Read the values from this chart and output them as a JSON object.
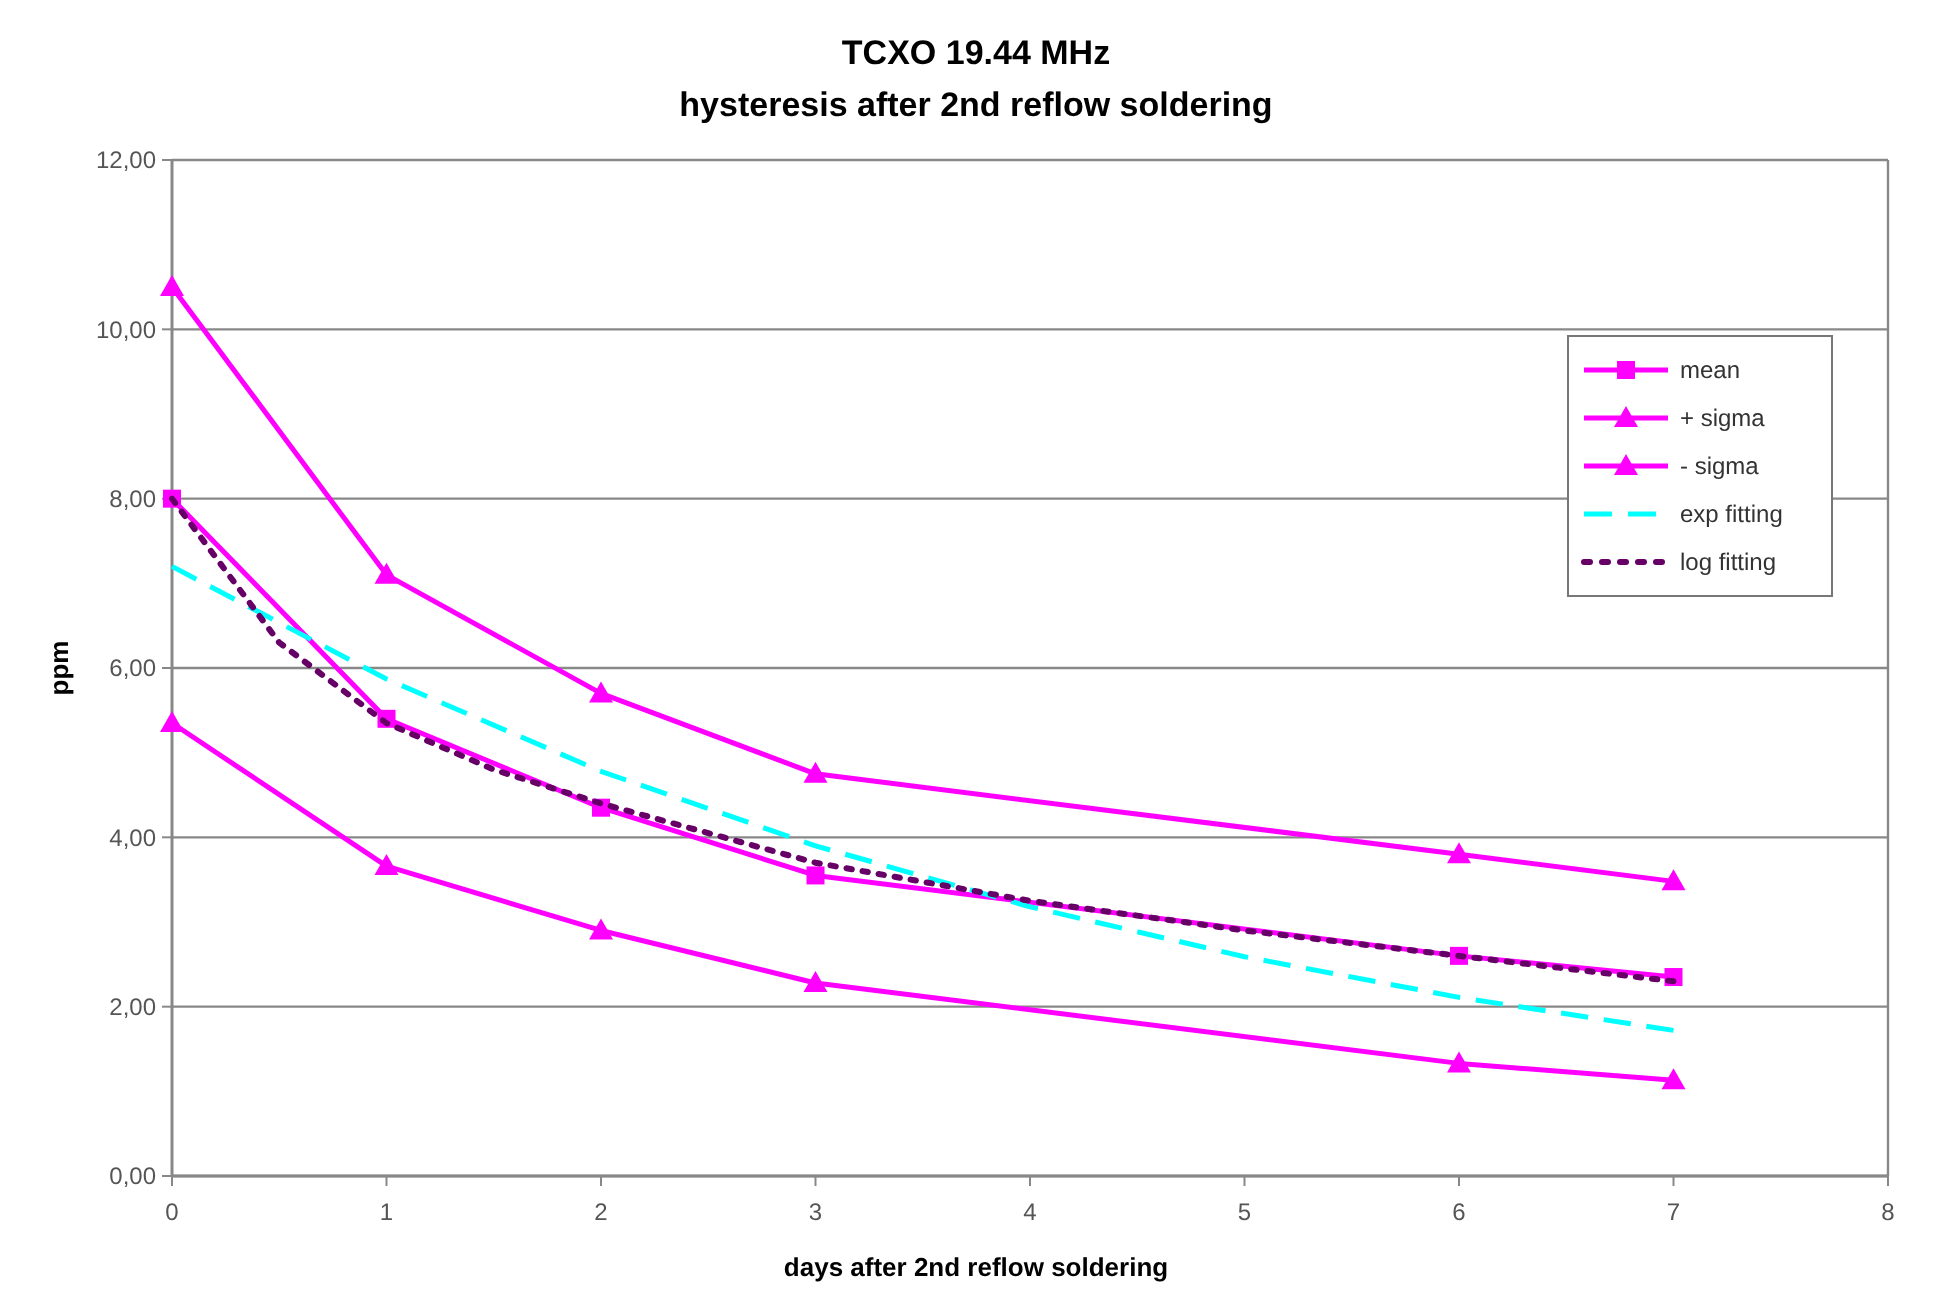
{
  "chart_data": {
    "type": "line",
    "title": "TCXO 19.44 MHz",
    "subtitle": "hysteresis after 2nd reflow soldering",
    "xlabel": "days after 2nd reflow soldering",
    "ylabel": "ppm",
    "xlim": [
      0,
      8
    ],
    "xticks": [
      0,
      1,
      2,
      3,
      4,
      5,
      6,
      7,
      8
    ],
    "ylim": [
      0,
      12
    ],
    "yticks": [
      {
        "value": 0,
        "label": "0,00"
      },
      {
        "value": 2,
        "label": "2,00"
      },
      {
        "value": 4,
        "label": "4,00"
      },
      {
        "value": 6,
        "label": "6,00"
      },
      {
        "value": 8,
        "label": "8,00"
      },
      {
        "value": 10,
        "label": "10,00"
      },
      {
        "value": 12,
        "label": "12,00"
      }
    ],
    "grid": "y",
    "legend": "right",
    "series": [
      {
        "name": "mean",
        "color": "#ff00ff",
        "marker": "square",
        "line_style": "solid",
        "x": [
          0,
          1,
          2,
          3,
          6,
          7
        ],
        "values": [
          8.0,
          5.4,
          4.35,
          3.55,
          2.6,
          2.35
        ]
      },
      {
        "name": "+ sigma",
        "color": "#ff00ff",
        "marker": "triangle",
        "line_style": "solid",
        "x": [
          0,
          1,
          2,
          3,
          6,
          7
        ],
        "values": [
          10.5,
          7.1,
          5.7,
          4.75,
          3.8,
          3.48
        ]
      },
      {
        "name": "- sigma",
        "color": "#ff00ff",
        "marker": "triangle",
        "line_style": "solid",
        "x": [
          0,
          1,
          2,
          3,
          6,
          7
        ],
        "values": [
          5.35,
          3.66,
          2.9,
          2.28,
          1.33,
          1.13
        ]
      },
      {
        "name": "exp fitting",
        "color": "#00ffff",
        "marker": "none",
        "line_style": "dashed",
        "x": [
          0,
          1,
          2,
          3,
          4,
          5,
          6,
          7
        ],
        "values": [
          7.2,
          5.87,
          4.78,
          3.9,
          3.18,
          2.59,
          2.11,
          1.72
        ]
      },
      {
        "name": "log fitting",
        "color": "#660066",
        "marker": "none",
        "line_style": "dotted",
        "x": [
          0,
          0.5,
          1,
          1.5,
          2,
          3,
          4,
          5,
          6,
          7
        ],
        "values": [
          8.0,
          6.3,
          5.35,
          4.8,
          4.4,
          3.7,
          3.25,
          2.9,
          2.6,
          2.3
        ]
      }
    ]
  }
}
